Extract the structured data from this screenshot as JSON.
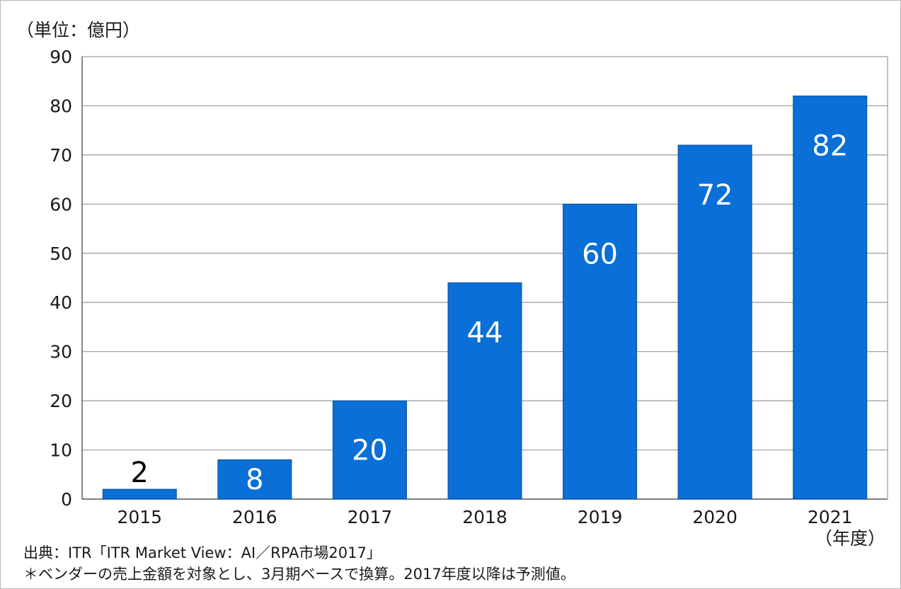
{
  "chart_data": {
    "type": "bar",
    "unit_label": "（単位：億円）",
    "x_unit_label": "（年度）",
    "categories": [
      "2015",
      "2016",
      "2017",
      "2018",
      "2019",
      "2020",
      "2021"
    ],
    "values": [
      2,
      8,
      20,
      44,
      60,
      72,
      82
    ],
    "ylim": [
      0,
      90
    ],
    "yticks": [
      0,
      10,
      20,
      30,
      40,
      50,
      60,
      70,
      80,
      90
    ],
    "grid": true,
    "bar_color": "#0a6fd6",
    "label_color_inside": "#ffffff",
    "label_color_outside": "#000000"
  },
  "footnotes": {
    "source": "出典：ITR「ITR Market View：AI／RPA市場2017」",
    "remark": "＊ベンダーの売上金額を対象とし、3月期ベースで換算。2017年度以降は予測値。"
  }
}
